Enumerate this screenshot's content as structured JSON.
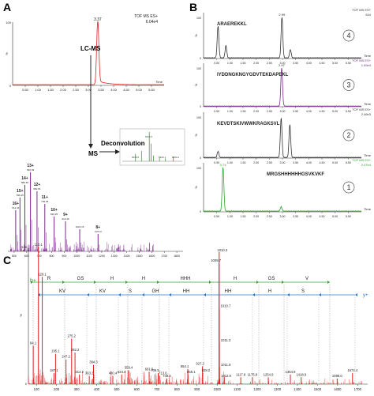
{
  "panel_labels": {
    "a": "A",
    "b": "B",
    "c": "C"
  },
  "colors": {
    "red": "#e02020",
    "purple": "#7a2a8c",
    "green": "#2aa52a",
    "black": "#222222",
    "gray": "#777777",
    "blue": "#2b78c8",
    "ion_green": "#3aa03a"
  },
  "chart_data": [
    {
      "id": "A-top",
      "type": "line",
      "title": "",
      "legend": [
        "TOF MS ES+",
        "6.04e4"
      ],
      "xlabel": "Time",
      "ylabel": "%",
      "xlim": [
        0,
        6
      ],
      "ylim": [
        0,
        100
      ],
      "xticks": [
        "0.50",
        "1.00",
        "1.50",
        "2.00",
        "2.50",
        "3.00",
        "3.50",
        "4.00",
        "4.50",
        "5.00",
        "5.50"
      ],
      "yticks": [
        "0",
        "100"
      ],
      "peaks": [
        {
          "x": 3.37,
          "y": 100,
          "label": "3.37"
        }
      ],
      "color": "#e02020"
    },
    {
      "id": "A-bottom",
      "type": "bar",
      "xlim": [
        450,
        1850
      ],
      "ylim": [
        0,
        100
      ],
      "xticks": [
        "500",
        "600",
        "700",
        "800",
        "900",
        "1000",
        "1100",
        "1200",
        "1300",
        "1400",
        "1500",
        "1600",
        "1700",
        "1800"
      ],
      "peaks": [
        {
          "x": 512.3,
          "y": 52,
          "label": "16+",
          "sub": "512.41"
        },
        {
          "x": 546.5,
          "y": 68,
          "label": "15+",
          "sub": "546.45"
        },
        {
          "x": 585.5,
          "y": 84,
          "label": "14+",
          "sub": "585.46"
        },
        {
          "x": 630.4,
          "y": 100,
          "label": "13+",
          "sub": "630.49"
        },
        {
          "x": 682.9,
          "y": 76,
          "label": "12+",
          "sub": "682.91"
        },
        {
          "x": 745.0,
          "y": 60,
          "label": "11+",
          "sub": "745.05"
        },
        {
          "x": 819.3,
          "y": 44,
          "label": "10+",
          "sub": "819.35"
        },
        {
          "x": 910.4,
          "y": 38,
          "label": "9+",
          "sub": "910.40"
        },
        {
          "x": 1024.1,
          "y": 28,
          "label": "",
          "sub": "1024.15"
        },
        {
          "x": 1170.6,
          "y": 22,
          "label": "8+",
          "sub": "1170.6"
        }
      ],
      "color": "#7a2a8c"
    },
    {
      "id": "B",
      "type": "line",
      "xlabel": "Time",
      "xlim": [
        0,
        6
      ],
      "xticks": [
        "0.50",
        "1.00",
        "1.50",
        "2.00",
        "2.50",
        "3.00",
        "3.50",
        "4.00",
        "4.50",
        "5.00",
        "5.50"
      ],
      "series": [
        {
          "name": "ARAEREKKL",
          "legend": [
            "TOF MS ES+",
            "644"
          ],
          "color": "#333333",
          "peaks": [
            {
              "x": 0.55,
              "y": 78
            },
            {
              "x": 0.85,
              "y": 30
            },
            {
              "x": 2.98,
              "y": 100,
              "label": "2.99"
            },
            {
              "x": 3.3,
              "y": 20
            }
          ],
          "badge": "4"
        },
        {
          "name": "IYDDNGKNGYGDVTEKDAPEKL",
          "legend": [
            "TOF MS ES+",
            "1.69e4"
          ],
          "color": "#7a2a8c",
          "peaks": [
            {
              "x": 2.97,
              "y": 100,
              "label": "2.97"
            }
          ],
          "badge": "3"
        },
        {
          "name": "KEVDTSKIVWWKRAGKSVL",
          "legend": [
            "TOF MS ES+",
            "2.46e3"
          ],
          "color": "#333333",
          "peaks": [
            {
              "x": 0.55,
              "y": 15
            },
            {
              "x": 2.95,
              "y": 96
            },
            {
              "x": 3.28,
              "y": 80
            }
          ],
          "badge": "2"
        },
        {
          "name": "MRGSHHHHHHGSVKVKF",
          "legend": [
            "TOF MS ES+",
            "2.47e4"
          ],
          "color": "#2aa52a",
          "peaks": [
            {
              "x": 0.74,
              "y": 100,
              "label": "0.74"
            },
            {
              "x": 2.95,
              "y": 10
            }
          ],
          "badge": "1"
        }
      ]
    },
    {
      "id": "C",
      "type": "bar",
      "xlim": [
        60,
        1750
      ],
      "ylim": [
        0,
        100
      ],
      "ylabel": "%",
      "xticks": [
        "100",
        "200",
        "300",
        "400",
        "500",
        "600",
        "700",
        "800",
        "900",
        "1000",
        "1100",
        "1200",
        "1300",
        "1400",
        "1500",
        "1600",
        "1700"
      ],
      "b_ions": [
        "R",
        "GS",
        "H",
        "H",
        "HHH",
        "H",
        "GS",
        "V"
      ],
      "y_ions": [
        "KV",
        "KV",
        "S",
        "GH",
        "HH",
        "HH",
        "H",
        "S"
      ],
      "b_label": "b+",
      "y_label": "y+",
      "peaks": [
        {
          "x": 84.1,
          "y": 28,
          "label": "84.1"
        },
        {
          "x": 110.1,
          "y": 100,
          "label": "110.1"
        },
        {
          "x": 129.1,
          "y": 78,
          "label": "129.1"
        },
        {
          "x": 187.1,
          "y": 8,
          "label": "187.1"
        },
        {
          "x": 195.1,
          "y": 22,
          "label": "195.1"
        },
        {
          "x": 247.2,
          "y": 18,
          "label": "247.2"
        },
        {
          "x": 275.2,
          "y": 33,
          "label": "275.2"
        },
        {
          "x": 292.2,
          "y": 23,
          "label": "292.2"
        },
        {
          "x": 314.2,
          "y": 7,
          "label": "314.2"
        },
        {
          "x": 363.3,
          "y": 6,
          "label": "363.3"
        },
        {
          "x": 384.3,
          "y": 14,
          "label": "384.3"
        },
        {
          "x": 480.4,
          "y": 6,
          "label": "480.4"
        },
        {
          "x": 524.4,
          "y": 7,
          "label": "524.4"
        },
        {
          "x": 559.4,
          "y": 10,
          "label": "559.4"
        },
        {
          "x": 661.5,
          "y": 9,
          "label": "661.5"
        },
        {
          "x": 706.5,
          "y": 8,
          "label": "706.5"
        },
        {
          "x": 713.6,
          "y": 6,
          "label": "713.6"
        },
        {
          "x": 749.5,
          "y": 4,
          "label": "749.5"
        },
        {
          "x": 854.1,
          "y": 11,
          "label": "854.1"
        },
        {
          "x": 855.1,
          "y": 7,
          "label": "855.1"
        },
        {
          "x": 927.2,
          "y": 13,
          "label": "927.2"
        },
        {
          "x": 928.2,
          "y": 8,
          "label": "928.2"
        },
        {
          "x": 1010.3,
          "y": 96,
          "label": "1010.3"
        },
        {
          "x": 1009.7,
          "y": 88,
          "label": "1009.7"
        },
        {
          "x": 1010.7,
          "y": 55,
          "label": "1010.7"
        },
        {
          "x": 1011.3,
          "y": 30,
          "label": "1011.3"
        },
        {
          "x": 1011.8,
          "y": 12,
          "label": "1011.8"
        },
        {
          "x": 1012.9,
          "y": 4,
          "label": "1012.9"
        },
        {
          "x": 1117.8,
          "y": 5,
          "label": "1117.8"
        },
        {
          "x": 1175.8,
          "y": 5,
          "label": "1175.8"
        },
        {
          "x": 1254.9,
          "y": 5,
          "label": "1254.9"
        },
        {
          "x": 1364.9,
          "y": 7,
          "label": "1364.9"
        },
        {
          "x": 1418.9,
          "y": 5,
          "label": "1418.9"
        },
        {
          "x": 1598.0,
          "y": 4,
          "label": "1598.0"
        },
        {
          "x": 1674.4,
          "y": 8,
          "label": "1674.4"
        }
      ],
      "color": "#e02020"
    }
  ],
  "annotations": {
    "lcms": "LC-MS",
    "ms": "MS",
    "deconv": "Deconvolution"
  },
  "inset": {
    "color": "#3aa03a",
    "labels": [
      "8109.5",
      "8115.5",
      "8200.1",
      "8300.2"
    ]
  }
}
